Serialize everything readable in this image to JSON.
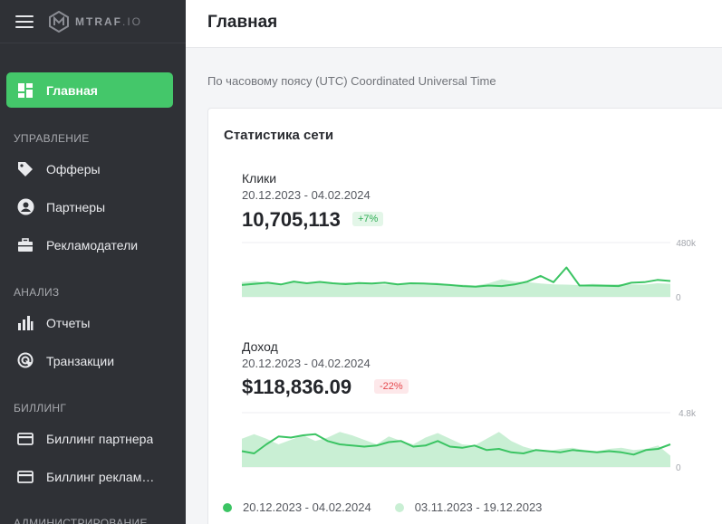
{
  "app": {
    "brand": "MTRAF",
    "brand_suffix": ".IO"
  },
  "header": {
    "title": "Главная"
  },
  "sidebar": {
    "home": "Главная",
    "sections": [
      {
        "title": "УПРАВЛЕНИЕ",
        "items": [
          "Офферы",
          "Партнеры",
          "Рекламодатели"
        ]
      },
      {
        "title": "АНАЛИЗ",
        "items": [
          "Отчеты",
          "Транзакции"
        ]
      },
      {
        "title": "БИЛЛИНГ",
        "items": [
          "Биллинг партнера",
          "Биллинг рекламодателя"
        ]
      },
      {
        "title": "АДМИНИСТРИРОВАНИЕ",
        "items": []
      }
    ]
  },
  "timezone_note": "По часовому поясу (UTC) Coordinated Universal Time",
  "stats": {
    "title": "Статистика сети",
    "clicks": {
      "label": "Клики",
      "range": "20.12.2023 - 04.02.2024",
      "value": "10,705,113",
      "change": "+7%",
      "axis_max": "480k",
      "axis_min": "0"
    },
    "revenue": {
      "label": "Доход",
      "range": "20.12.2023 - 04.02.2024",
      "value": "$118,836.09",
      "change": "-22%",
      "axis_max": "4.8k",
      "axis_min": "0"
    },
    "legend": {
      "current": "20.12.2023 - 04.02.2024",
      "previous": "03.11.2023 - 19.12.2023"
    }
  },
  "colors": {
    "accent": "#44c76a",
    "sidebar_bg": "#2f3136",
    "previous_fill": "#c9efd4",
    "current_line": "#3bc463"
  },
  "chart_data": [
    {
      "type": "area",
      "series": [
        {
          "name": "20.12.2023 - 04.02.2024",
          "values": [
            105000,
            115000,
            125000,
            110000,
            135000,
            120000,
            132000,
            120000,
            112000,
            122000,
            118000,
            125000,
            110000,
            120000,
            118000,
            112000,
            105000,
            95000,
            90000,
            100000,
            95000,
            110000,
            135000,
            185000,
            130000,
            260000,
            100000,
            100000,
            98000,
            95000,
            125000,
            130000,
            150000,
            140000
          ]
        },
        {
          "name": "03.11.2023 - 19.12.2023",
          "values": [
            130000,
            140000,
            120000,
            110000,
            135000,
            120000,
            125000,
            115000,
            130000,
            120000,
            112000,
            108000,
            115000,
            110000,
            120000,
            125000,
            110000,
            108000,
            100000,
            120000,
            155000,
            135000,
            130000,
            118000,
            110000,
            108000,
            104000,
            115000,
            110000,
            112000,
            110000,
            108000,
            120000,
            115000
          ]
        }
      ],
      "ylim": [
        0,
        480000
      ]
    },
    {
      "type": "area",
      "series": [
        {
          "name": "20.12.2023 - 04.02.2024",
          "values": [
            1400,
            1200,
            2000,
            2700,
            2600,
            2800,
            2900,
            2300,
            2000,
            1900,
            1800,
            1900,
            2200,
            2300,
            1800,
            1900,
            2300,
            1800,
            1700,
            1900,
            1500,
            1600,
            1300,
            1200,
            1500,
            1400,
            1300,
            1500,
            1400,
            1300,
            1400,
            1300,
            1100,
            1500,
            1600,
            2000
          ]
        },
        {
          "name": "03.11.2023 - 19.12.2023",
          "values": [
            2500,
            2900,
            2500,
            2000,
            2400,
            2800,
            2300,
            2600,
            3100,
            2800,
            2400,
            2000,
            2700,
            2300,
            2000,
            2600,
            3000,
            2500,
            2000,
            1900,
            2500,
            3100,
            2300,
            1800,
            1500,
            1400,
            1600,
            1700,
            1500,
            1400,
            1600,
            1700,
            1500,
            1600,
            1900,
            1000
          ]
        }
      ],
      "ylim": [
        0,
        4800
      ]
    }
  ]
}
